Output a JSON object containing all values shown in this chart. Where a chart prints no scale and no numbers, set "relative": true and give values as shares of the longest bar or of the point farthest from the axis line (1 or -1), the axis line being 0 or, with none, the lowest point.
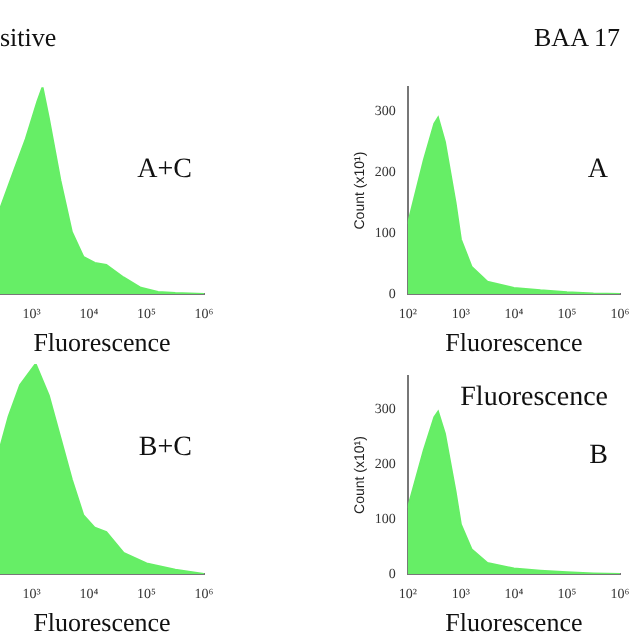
{
  "chart_data": [
    {
      "type": "area",
      "title": "sitive",
      "xlabel": "Fluorescence",
      "relative": true,
      "log": "x",
      "color": "#66ee66",
      "xlim": [
        282,
        1000000
      ],
      "xticks": [
        {
          "value": 1000,
          "label": "10³"
        },
        {
          "value": 10000,
          "label": "10⁴"
        },
        {
          "value": 100000,
          "label": "10⁵"
        },
        {
          "value": 1000000,
          "label": "10⁶"
        }
      ],
      "annotations": [
        "A+C"
      ],
      "x": [
        282,
        501,
        794,
        1259,
        1549,
        1995,
        3162,
        5012,
        7943,
        12589,
        19953,
        39811,
        79433,
        158489,
        316228,
        1000000
      ],
      "values": [
        0.41,
        0.6,
        0.75,
        0.93,
        1,
        0.85,
        0.55,
        0.3,
        0.18,
        0.15,
        0.14,
        0.08,
        0.03,
        0.01,
        0.005,
        0
      ]
    },
    {
      "type": "area",
      "title": "BAA 17",
      "xlabel": "Fluorescence",
      "ylabel": "Count (x10¹)",
      "log": "x",
      "color": "#66ee66",
      "xlim": [
        100,
        1000000
      ],
      "xticks": [
        {
          "value": 100,
          "label": "10²"
        },
        {
          "value": 1000,
          "label": "10³"
        },
        {
          "value": 10000,
          "label": "10⁴"
        },
        {
          "value": 100000,
          "label": "10⁵"
        },
        {
          "value": 1000000,
          "label": "10⁶"
        }
      ],
      "ylim": [
        0,
        340
      ],
      "yticks": [
        0,
        100,
        200,
        300
      ],
      "annotations": [
        "A"
      ],
      "x": [
        100,
        200,
        316,
        372,
        501,
        794,
        1000,
        1585,
        3162,
        10000,
        31623,
        100000,
        316228,
        1000000
      ],
      "values": [
        115,
        220,
        280,
        290,
        250,
        150,
        90,
        45,
        20,
        10,
        6,
        3,
        1,
        0
      ]
    },
    {
      "type": "area",
      "xlabel": "Fluorescence",
      "relative": true,
      "log": "x",
      "color": "#66ee66",
      "xlim": [
        282,
        1000000
      ],
      "xticks": [
        {
          "value": 1000,
          "label": "10³"
        },
        {
          "value": 10000,
          "label": "10⁴"
        },
        {
          "value": 100000,
          "label": "10⁵"
        },
        {
          "value": 1000000,
          "label": "10⁶"
        }
      ],
      "annotations": [
        "B+C"
      ],
      "x": [
        282,
        398,
        631,
        1175,
        1995,
        3162,
        5012,
        7943,
        12589,
        19953,
        39811,
        100000,
        316228,
        1000000
      ],
      "values": [
        0.6,
        0.75,
        0.9,
        1,
        0.85,
        0.65,
        0.45,
        0.28,
        0.22,
        0.2,
        0.1,
        0.05,
        0.02,
        0
      ]
    },
    {
      "type": "area",
      "xlabel": "Fluorescence",
      "ylabel": "Count (x10¹)",
      "log": "x",
      "color": "#66ee66",
      "xlim": [
        100,
        1000000
      ],
      "xticks": [
        {
          "value": 100,
          "label": "10²"
        },
        {
          "value": 1000,
          "label": "10³"
        },
        {
          "value": 10000,
          "label": "10⁴"
        },
        {
          "value": 100000,
          "label": "10⁵"
        },
        {
          "value": 1000000,
          "label": "10⁶"
        }
      ],
      "ylim": [
        0,
        360
      ],
      "yticks": [
        0,
        100,
        200,
        300
      ],
      "annotations": [
        "Fluorescence",
        "B"
      ],
      "x": [
        100,
        200,
        316,
        372,
        501,
        794,
        1000,
        1585,
        3162,
        10000,
        31623,
        100000,
        316228,
        1000000
      ],
      "values": [
        120,
        225,
        285,
        295,
        255,
        150,
        90,
        45,
        20,
        10,
        6,
        3,
        1,
        0
      ]
    }
  ]
}
